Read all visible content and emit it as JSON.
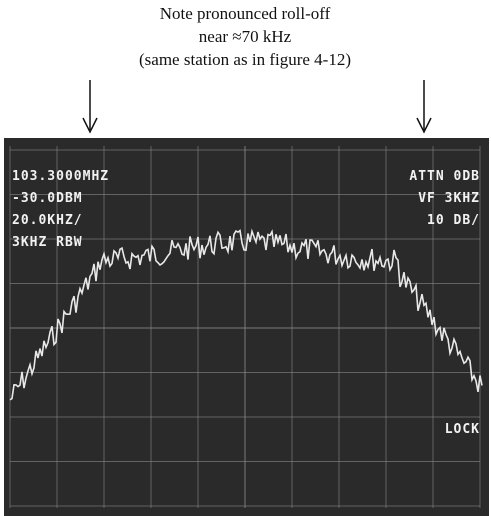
{
  "annotation": {
    "lines": [
      "Note pronounced  roll-off",
      "near ≈70 kHz",
      "(same station as in figure 4-12)"
    ]
  },
  "readouts": {
    "left": [
      "103.3000MHZ",
      "-30.0DBM",
      "20.0KHZ/",
      "3KHZ RBW"
    ],
    "right": [
      "ATTN 0DB",
      "VF 3KHZ",
      "10 DB/"
    ],
    "status": "LOCK"
  }
}
